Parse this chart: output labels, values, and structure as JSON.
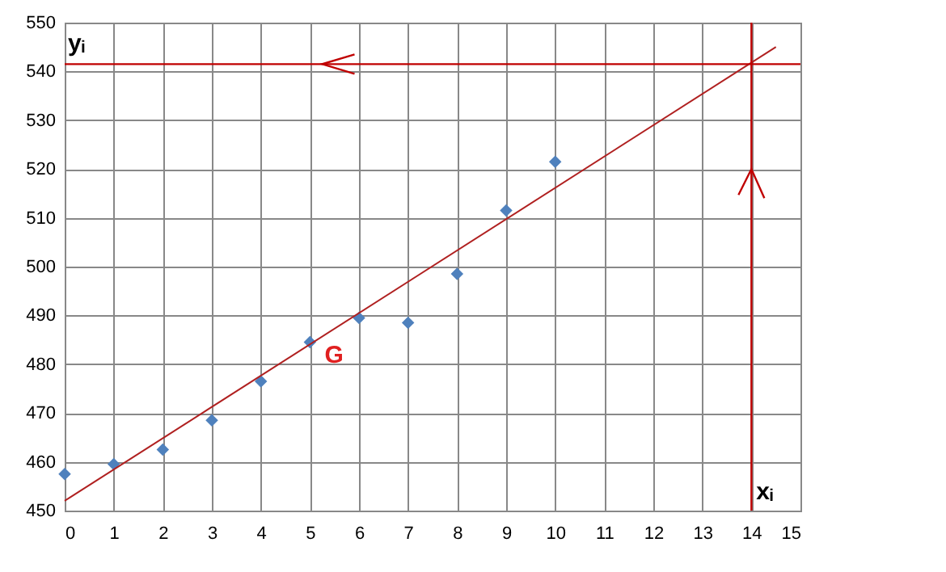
{
  "chart_data": {
    "type": "scatter",
    "grid": true,
    "series": [
      {
        "type": "scatter",
        "marker": "diamond",
        "color": "#4f81bd",
        "x": [
          0,
          1,
          2,
          3,
          4,
          5,
          6,
          7,
          8,
          9,
          10
        ],
        "values": [
          457.5,
          459.5,
          462.5,
          468.5,
          476.5,
          484.5,
          489.5,
          488.5,
          498.5,
          511.5,
          521.5
        ]
      },
      {
        "type": "line",
        "color": "#b02020",
        "x": [
          0,
          14.5
        ],
        "values": [
          452,
          545
        ]
      }
    ],
    "xlim": [
      0,
      15
    ],
    "xticks": [
      0,
      1,
      2,
      3,
      4,
      5,
      6,
      7,
      8,
      9,
      10,
      11,
      12,
      13,
      14,
      15
    ],
    "ylim": [
      450,
      550
    ],
    "yticks": [
      450,
      460,
      470,
      480,
      490,
      500,
      510,
      520,
      530,
      540,
      550
    ],
    "ref_lines": [
      {
        "axis": "y",
        "value": 541.5,
        "label": "yᵢ",
        "color": "#c00000"
      },
      {
        "axis": "x",
        "value": 14,
        "label": "xᵢ",
        "color": "#c00000"
      }
    ],
    "annotations": [
      "G"
    ]
  }
}
